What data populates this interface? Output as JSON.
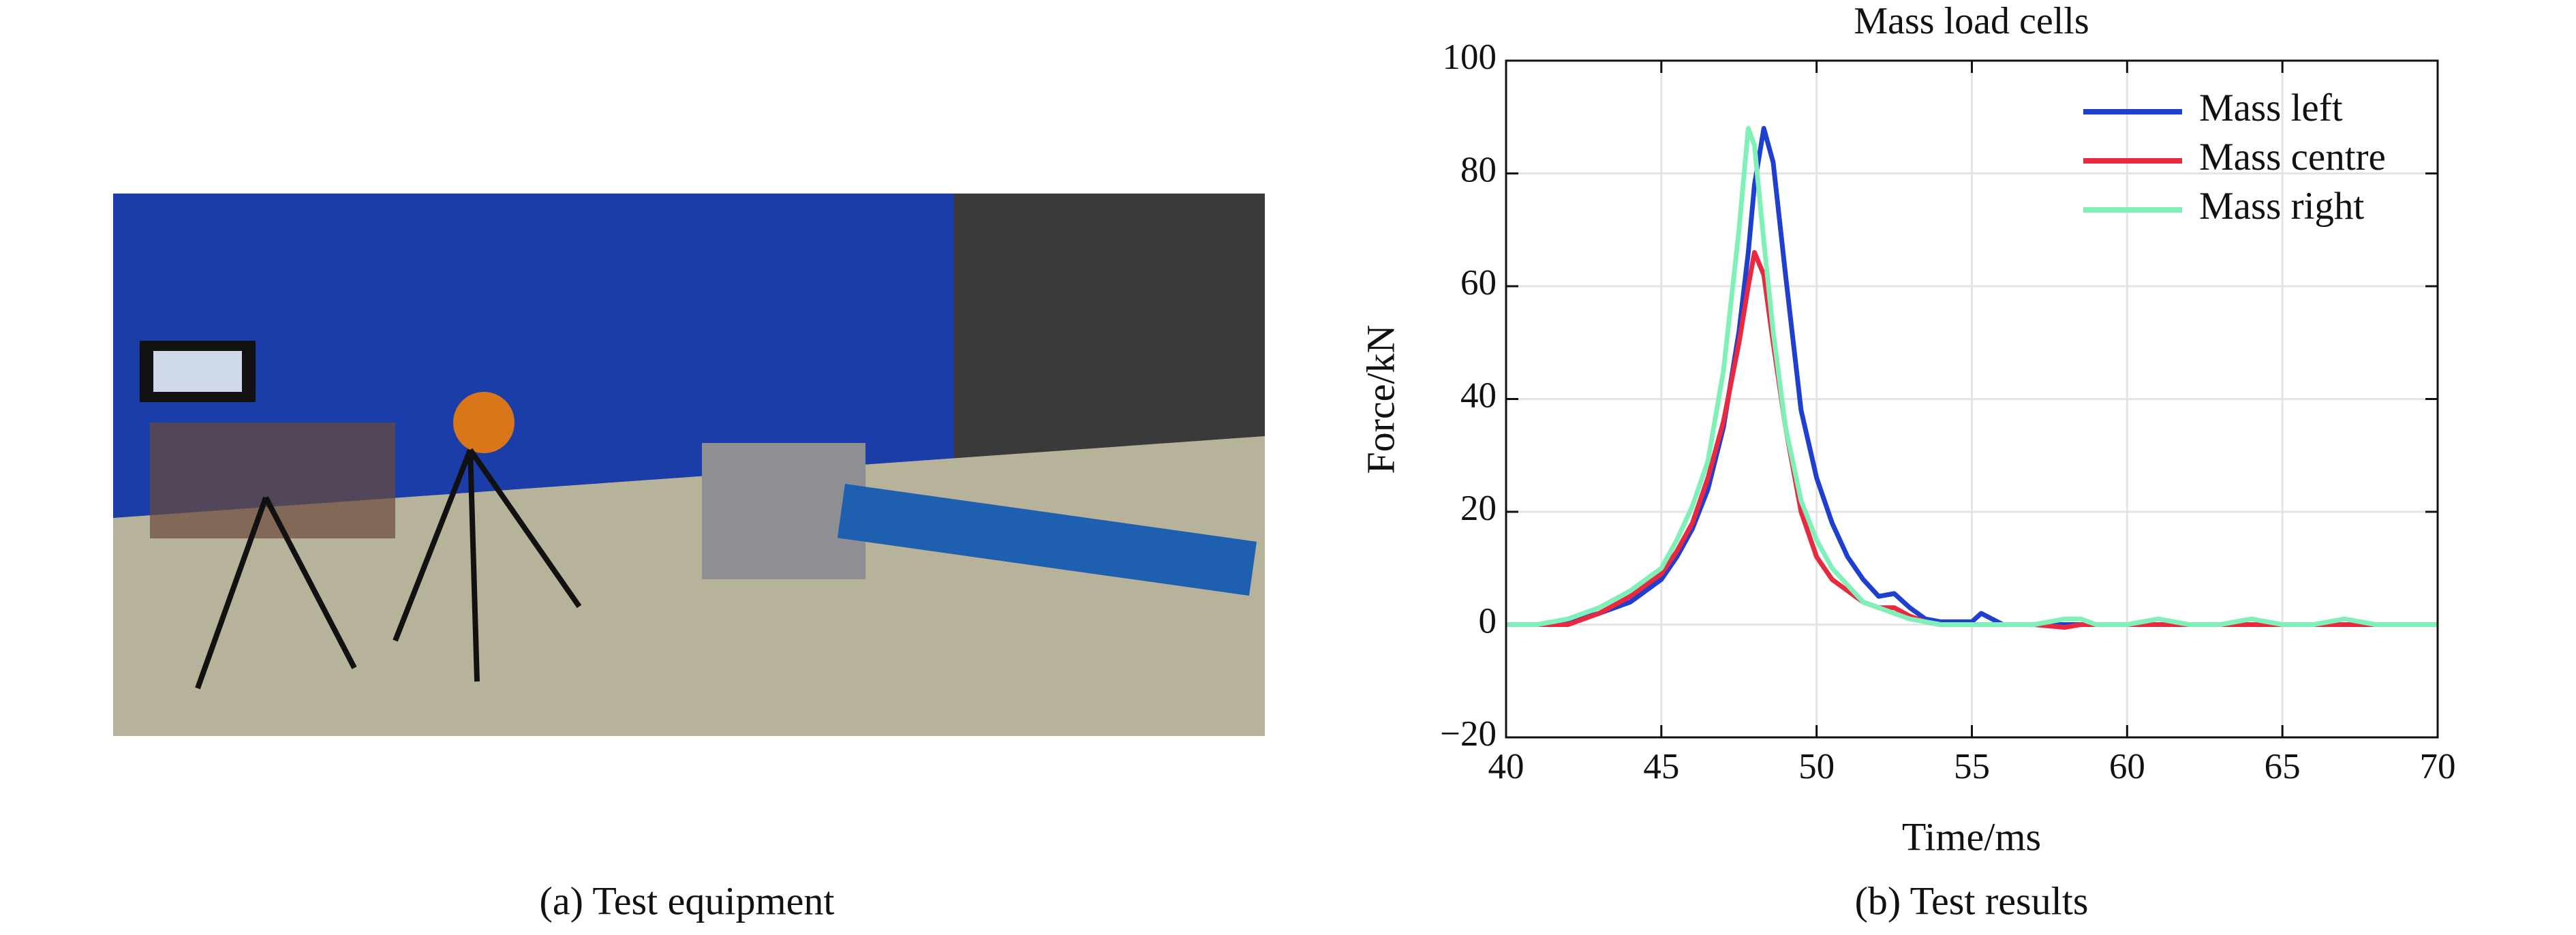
{
  "chart_data": {
    "type": "line",
    "title": "Mass load cells",
    "x_label": "Time/ms",
    "y_label": "Force/kN",
    "x": [
      40,
      41,
      42,
      43,
      44,
      45,
      45.5,
      46,
      46.5,
      47,
      47.5,
      47.8,
      48,
      48.3,
      48.6,
      49,
      49.5,
      50,
      50.5,
      51,
      51.5,
      52,
      52.5,
      53,
      53.5,
      54,
      55,
      55.3,
      56,
      57,
      58,
      58.5,
      59,
      60,
      61,
      62,
      63,
      64,
      65,
      66,
      67,
      68,
      69,
      70
    ],
    "series": [
      {
        "name": "Mass left",
        "color": "#1f3fd0",
        "values": [
          0,
          0,
          0.5,
          2,
          4,
          8,
          12,
          17,
          24,
          35,
          52,
          66,
          78,
          88,
          82,
          62,
          38,
          26,
          18,
          12,
          8,
          5,
          5.5,
          3,
          1,
          0.5,
          0.5,
          2,
          0,
          0,
          0,
          0,
          0,
          0,
          0,
          0,
          0,
          0,
          0,
          0,
          0,
          0,
          0,
          0
        ]
      },
      {
        "name": "Mass centre",
        "color": "#e8293f",
        "values": [
          0,
          0,
          0,
          2,
          5,
          9,
          13,
          18,
          26,
          36,
          50,
          60,
          66,
          62,
          50,
          35,
          20,
          12,
          8,
          6,
          4,
          3,
          3,
          1.5,
          0.5,
          0,
          0,
          0,
          0,
          0,
          -0.5,
          0,
          0,
          0,
          0,
          0,
          0,
          0,
          0,
          0,
          0,
          0,
          0,
          0
        ]
      },
      {
        "name": "Mass right",
        "color": "#7ff0b8",
        "values": [
          0,
          0,
          1,
          3,
          6,
          10,
          15,
          21,
          29,
          45,
          70,
          88,
          85,
          68,
          52,
          35,
          22,
          15,
          10,
          7,
          4,
          3,
          2,
          1,
          0.5,
          0,
          0,
          0,
          0,
          0,
          1,
          1,
          0,
          0,
          1,
          0,
          0,
          1,
          0,
          0,
          1,
          0,
          0,
          0
        ]
      }
    ],
    "xlim": [
      40,
      70
    ],
    "xticks": [
      40,
      45,
      50,
      55,
      60,
      65,
      70
    ],
    "ylim": [
      -20,
      100
    ],
    "yticks": [
      {
        "value": -20,
        "label": "−20"
      },
      0,
      20,
      40,
      60,
      80,
      100
    ],
    "grid": true,
    "legend": "upper right"
  },
  "captions": {
    "left": "(a) Test equipment",
    "right": "(b) Test results"
  }
}
